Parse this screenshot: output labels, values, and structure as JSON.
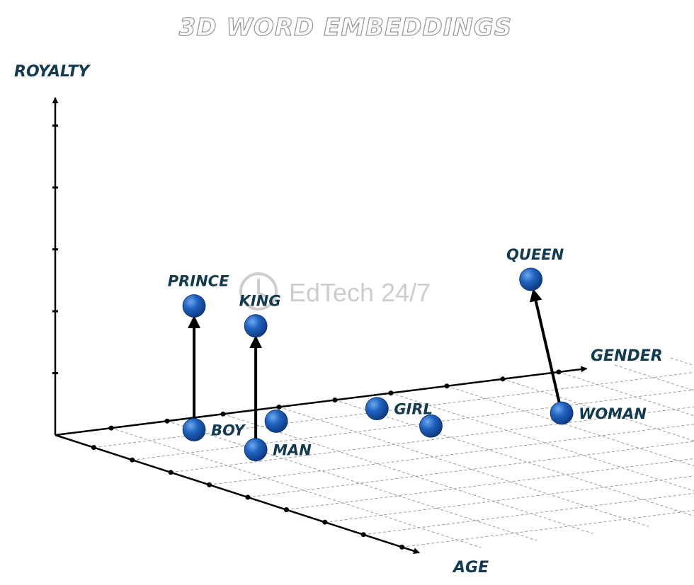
{
  "chart_data": {
    "type": "scatter",
    "projection": "3d",
    "title": "3D WORD EMBEDDINGS",
    "axes": {
      "x": {
        "label": "GENDER",
        "ticks": 9
      },
      "y": {
        "label": "AGE",
        "ticks": 9
      },
      "z": {
        "label": "ROYALTY",
        "ticks": 5
      }
    },
    "grid": "floor dashed",
    "points": [
      {
        "label": "BOY",
        "gender": 2.0,
        "age": 0.7,
        "royalty": 0
      },
      {
        "label": "MAN",
        "gender": 2.0,
        "age": 2.3,
        "royalty": 0
      },
      {
        "label": "PRINCE",
        "gender": 2.0,
        "age": 0.7,
        "royalty": 2.0
      },
      {
        "label": "KING",
        "gender": 2.0,
        "age": 2.3,
        "royalty": 2.0
      },
      {
        "label": "",
        "gender": 3.4,
        "age": 0.8,
        "royalty": 0
      },
      {
        "label": "GIRL",
        "gender": 5.2,
        "age": 0.8,
        "royalty": 0
      },
      {
        "label": "",
        "gender": 5.2,
        "age": 2.2,
        "royalty": 0
      },
      {
        "label": "WOMAN",
        "gender": 7.4,
        "age": 2.4,
        "royalty": 0
      },
      {
        "label": "QUEEN",
        "gender": 7.4,
        "age": 1.6,
        "royalty": 2.0
      }
    ],
    "arrows": [
      {
        "from": "BOY",
        "to": "PRINCE"
      },
      {
        "from": "MAN",
        "to": "KING"
      },
      {
        "from": "WOMAN",
        "to": "QUEEN"
      }
    ],
    "colors": {
      "point": "#1a5bb5",
      "axis": "#000000",
      "text": "#123a50"
    }
  },
  "watermark": {
    "text": "EdTech 24/7",
    "icon": "clock-icon"
  }
}
